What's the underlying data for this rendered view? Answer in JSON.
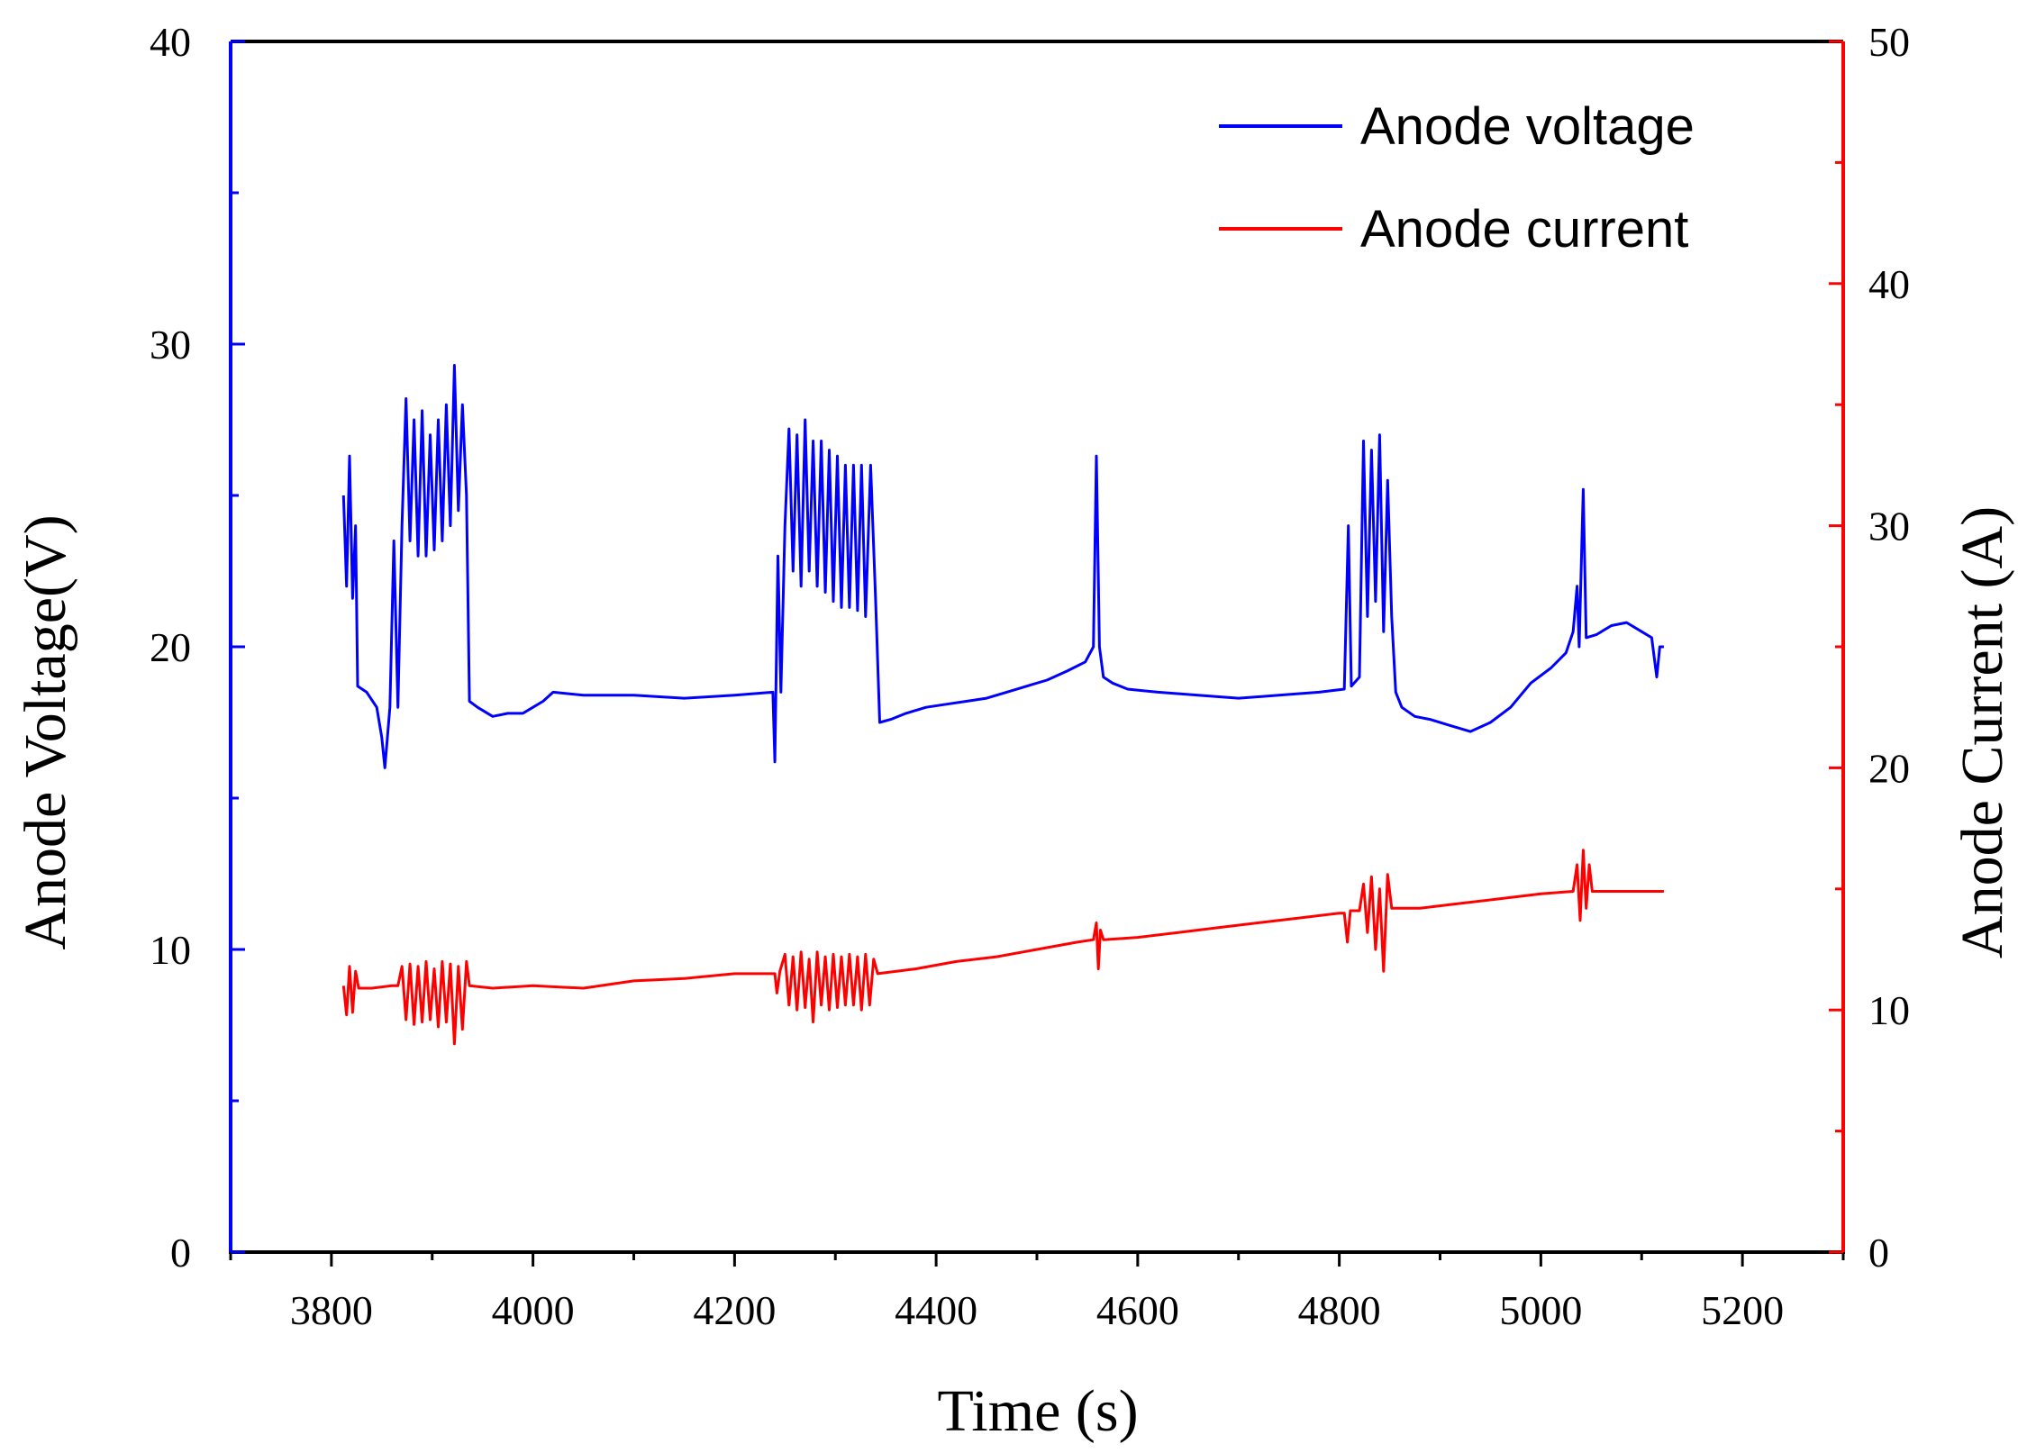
{
  "chart_data": {
    "type": "line",
    "title": "",
    "xlabel": "Time (s)",
    "ylabel_left": "Anode Voltage(V)",
    "ylabel_right": "Anode Current (A)",
    "xlim": [
      3700,
      5300
    ],
    "ylim_left": [
      0,
      40
    ],
    "ylim_right": [
      0,
      50
    ],
    "xticks": [
      3800,
      4000,
      4200,
      4400,
      4600,
      4800,
      5000,
      5200
    ],
    "yticks_left": [
      0,
      10,
      20,
      30,
      40
    ],
    "yticks_right": [
      0,
      10,
      20,
      30,
      40,
      50
    ],
    "grid": false,
    "legend_position": "top-right",
    "colors": {
      "left_axis": "#0000ff",
      "right_axis": "#ff0000",
      "frame": "#000000"
    },
    "series": [
      {
        "name": "Anode voltage",
        "axis": "left",
        "color": "#0000ff",
        "points": [
          [
            3812,
            25.0
          ],
          [
            3815,
            22.0
          ],
          [
            3818,
            26.3
          ],
          [
            3821,
            21.6
          ],
          [
            3824,
            24.0
          ],
          [
            3826,
            18.7
          ],
          [
            3835,
            18.5
          ],
          [
            3845,
            18.0
          ],
          [
            3850,
            17.0
          ],
          [
            3853,
            16.0
          ],
          [
            3858,
            18.0
          ],
          [
            3862,
            23.5
          ],
          [
            3866,
            18.0
          ],
          [
            3870,
            24.0
          ],
          [
            3874,
            28.2
          ],
          [
            3878,
            23.5
          ],
          [
            3882,
            27.5
          ],
          [
            3886,
            23.0
          ],
          [
            3890,
            27.8
          ],
          [
            3894,
            23.0
          ],
          [
            3898,
            27.0
          ],
          [
            3902,
            23.2
          ],
          [
            3906,
            27.5
          ],
          [
            3910,
            23.5
          ],
          [
            3914,
            28.0
          ],
          [
            3918,
            24.0
          ],
          [
            3922,
            29.3
          ],
          [
            3926,
            24.5
          ],
          [
            3930,
            28.0
          ],
          [
            3934,
            25.0
          ],
          [
            3937,
            18.2
          ],
          [
            3945,
            18.0
          ],
          [
            3960,
            17.7
          ],
          [
            3975,
            17.8
          ],
          [
            3990,
            17.8
          ],
          [
            4000,
            18.0
          ],
          [
            4010,
            18.2
          ],
          [
            4020,
            18.5
          ],
          [
            4050,
            18.4
          ],
          [
            4100,
            18.4
          ],
          [
            4150,
            18.3
          ],
          [
            4200,
            18.4
          ],
          [
            4238,
            18.5
          ],
          [
            4240,
            16.2
          ],
          [
            4243,
            23.0
          ],
          [
            4246,
            18.5
          ],
          [
            4250,
            24.0
          ],
          [
            4254,
            27.2
          ],
          [
            4258,
            22.5
          ],
          [
            4262,
            27.0
          ],
          [
            4266,
            22.0
          ],
          [
            4270,
            27.5
          ],
          [
            4274,
            22.5
          ],
          [
            4278,
            26.8
          ],
          [
            4282,
            22.0
          ],
          [
            4286,
            26.8
          ],
          [
            4290,
            21.8
          ],
          [
            4294,
            26.5
          ],
          [
            4298,
            21.5
          ],
          [
            4302,
            26.3
          ],
          [
            4306,
            21.3
          ],
          [
            4310,
            26.0
          ],
          [
            4314,
            21.3
          ],
          [
            4318,
            26.0
          ],
          [
            4322,
            21.2
          ],
          [
            4326,
            26.0
          ],
          [
            4330,
            21.0
          ],
          [
            4335,
            26.0
          ],
          [
            4340,
            21.5
          ],
          [
            4344,
            17.5
          ],
          [
            4355,
            17.6
          ],
          [
            4370,
            17.8
          ],
          [
            4390,
            18.0
          ],
          [
            4410,
            18.1
          ],
          [
            4430,
            18.2
          ],
          [
            4450,
            18.3
          ],
          [
            4470,
            18.5
          ],
          [
            4490,
            18.7
          ],
          [
            4510,
            18.9
          ],
          [
            4530,
            19.2
          ],
          [
            4548,
            19.5
          ],
          [
            4556,
            20.0
          ],
          [
            4559,
            26.3
          ],
          [
            4562,
            20.0
          ],
          [
            4566,
            19.0
          ],
          [
            4575,
            18.8
          ],
          [
            4590,
            18.6
          ],
          [
            4620,
            18.5
          ],
          [
            4660,
            18.4
          ],
          [
            4700,
            18.3
          ],
          [
            4740,
            18.4
          ],
          [
            4780,
            18.5
          ],
          [
            4805,
            18.6
          ],
          [
            4809,
            24.0
          ],
          [
            4812,
            18.7
          ],
          [
            4820,
            19.0
          ],
          [
            4824,
            26.8
          ],
          [
            4828,
            21.0
          ],
          [
            4832,
            26.5
          ],
          [
            4836,
            21.5
          ],
          [
            4840,
            27.0
          ],
          [
            4844,
            20.5
          ],
          [
            4848,
            25.5
          ],
          [
            4852,
            21.0
          ],
          [
            4856,
            18.5
          ],
          [
            4862,
            18.0
          ],
          [
            4875,
            17.7
          ],
          [
            4890,
            17.6
          ],
          [
            4910,
            17.4
          ],
          [
            4930,
            17.2
          ],
          [
            4950,
            17.5
          ],
          [
            4970,
            18.0
          ],
          [
            4990,
            18.8
          ],
          [
            5010,
            19.3
          ],
          [
            5025,
            19.8
          ],
          [
            5032,
            20.5
          ],
          [
            5036,
            22.0
          ],
          [
            5038,
            20.0
          ],
          [
            5042,
            25.2
          ],
          [
            5045,
            20.3
          ],
          [
            5055,
            20.4
          ],
          [
            5070,
            20.7
          ],
          [
            5085,
            20.8
          ],
          [
            5100,
            20.5
          ],
          [
            5110,
            20.3
          ],
          [
            5115,
            19.0
          ],
          [
            5118,
            20.0
          ],
          [
            5122,
            20.0
          ]
        ]
      },
      {
        "name": "Anode current",
        "axis": "right",
        "color": "#ff0000",
        "points": [
          [
            3812,
            11.0
          ],
          [
            3815,
            9.8
          ],
          [
            3818,
            11.8
          ],
          [
            3821,
            9.9
          ],
          [
            3824,
            11.6
          ],
          [
            3827,
            10.9
          ],
          [
            3840,
            10.9
          ],
          [
            3860,
            11.0
          ],
          [
            3866,
            11.0
          ],
          [
            3870,
            11.8
          ],
          [
            3874,
            9.6
          ],
          [
            3878,
            11.9
          ],
          [
            3882,
            9.4
          ],
          [
            3886,
            11.8
          ],
          [
            3890,
            9.5
          ],
          [
            3894,
            12.0
          ],
          [
            3898,
            9.6
          ],
          [
            3902,
            11.7
          ],
          [
            3906,
            9.3
          ],
          [
            3910,
            12.0
          ],
          [
            3914,
            9.5
          ],
          [
            3918,
            11.9
          ],
          [
            3922,
            8.6
          ],
          [
            3926,
            11.8
          ],
          [
            3930,
            9.2
          ],
          [
            3934,
            12.0
          ],
          [
            3937,
            11.0
          ],
          [
            3960,
            10.9
          ],
          [
            4000,
            11.0
          ],
          [
            4050,
            10.9
          ],
          [
            4100,
            11.2
          ],
          [
            4150,
            11.3
          ],
          [
            4200,
            11.5
          ],
          [
            4240,
            11.5
          ],
          [
            4242,
            10.7
          ],
          [
            4245,
            11.6
          ],
          [
            4250,
            12.3
          ],
          [
            4254,
            10.2
          ],
          [
            4258,
            12.2
          ],
          [
            4262,
            10.0
          ],
          [
            4266,
            12.4
          ],
          [
            4270,
            10.1
          ],
          [
            4274,
            12.1
          ],
          [
            4278,
            9.5
          ],
          [
            4282,
            12.4
          ],
          [
            4286,
            10.2
          ],
          [
            4290,
            12.2
          ],
          [
            4294,
            10.0
          ],
          [
            4298,
            12.3
          ],
          [
            4302,
            10.1
          ],
          [
            4306,
            12.2
          ],
          [
            4310,
            10.2
          ],
          [
            4314,
            12.3
          ],
          [
            4318,
            10.2
          ],
          [
            4322,
            12.2
          ],
          [
            4326,
            10.0
          ],
          [
            4330,
            12.3
          ],
          [
            4334,
            10.2
          ],
          [
            4338,
            12.1
          ],
          [
            4342,
            11.5
          ],
          [
            4380,
            11.7
          ],
          [
            4420,
            12.0
          ],
          [
            4460,
            12.2
          ],
          [
            4500,
            12.5
          ],
          [
            4540,
            12.8
          ],
          [
            4556,
            12.9
          ],
          [
            4559,
            13.6
          ],
          [
            4561,
            11.7
          ],
          [
            4563,
            13.3
          ],
          [
            4566,
            12.9
          ],
          [
            4600,
            13.0
          ],
          [
            4640,
            13.2
          ],
          [
            4680,
            13.4
          ],
          [
            4720,
            13.6
          ],
          [
            4760,
            13.8
          ],
          [
            4800,
            14.0
          ],
          [
            4805,
            14.0
          ],
          [
            4808,
            12.8
          ],
          [
            4811,
            14.1
          ],
          [
            4820,
            14.1
          ],
          [
            4824,
            15.2
          ],
          [
            4828,
            13.2
          ],
          [
            4832,
            15.5
          ],
          [
            4836,
            12.5
          ],
          [
            4840,
            15.0
          ],
          [
            4844,
            11.6
          ],
          [
            4848,
            15.6
          ],
          [
            4852,
            14.2
          ],
          [
            4880,
            14.2
          ],
          [
            4920,
            14.4
          ],
          [
            4960,
            14.6
          ],
          [
            5000,
            14.8
          ],
          [
            5032,
            14.9
          ],
          [
            5036,
            16.0
          ],
          [
            5039,
            13.7
          ],
          [
            5042,
            16.6
          ],
          [
            5045,
            14.2
          ],
          [
            5048,
            16.0
          ],
          [
            5051,
            14.9
          ],
          [
            5080,
            14.9
          ],
          [
            5122,
            14.9
          ]
        ]
      }
    ]
  }
}
